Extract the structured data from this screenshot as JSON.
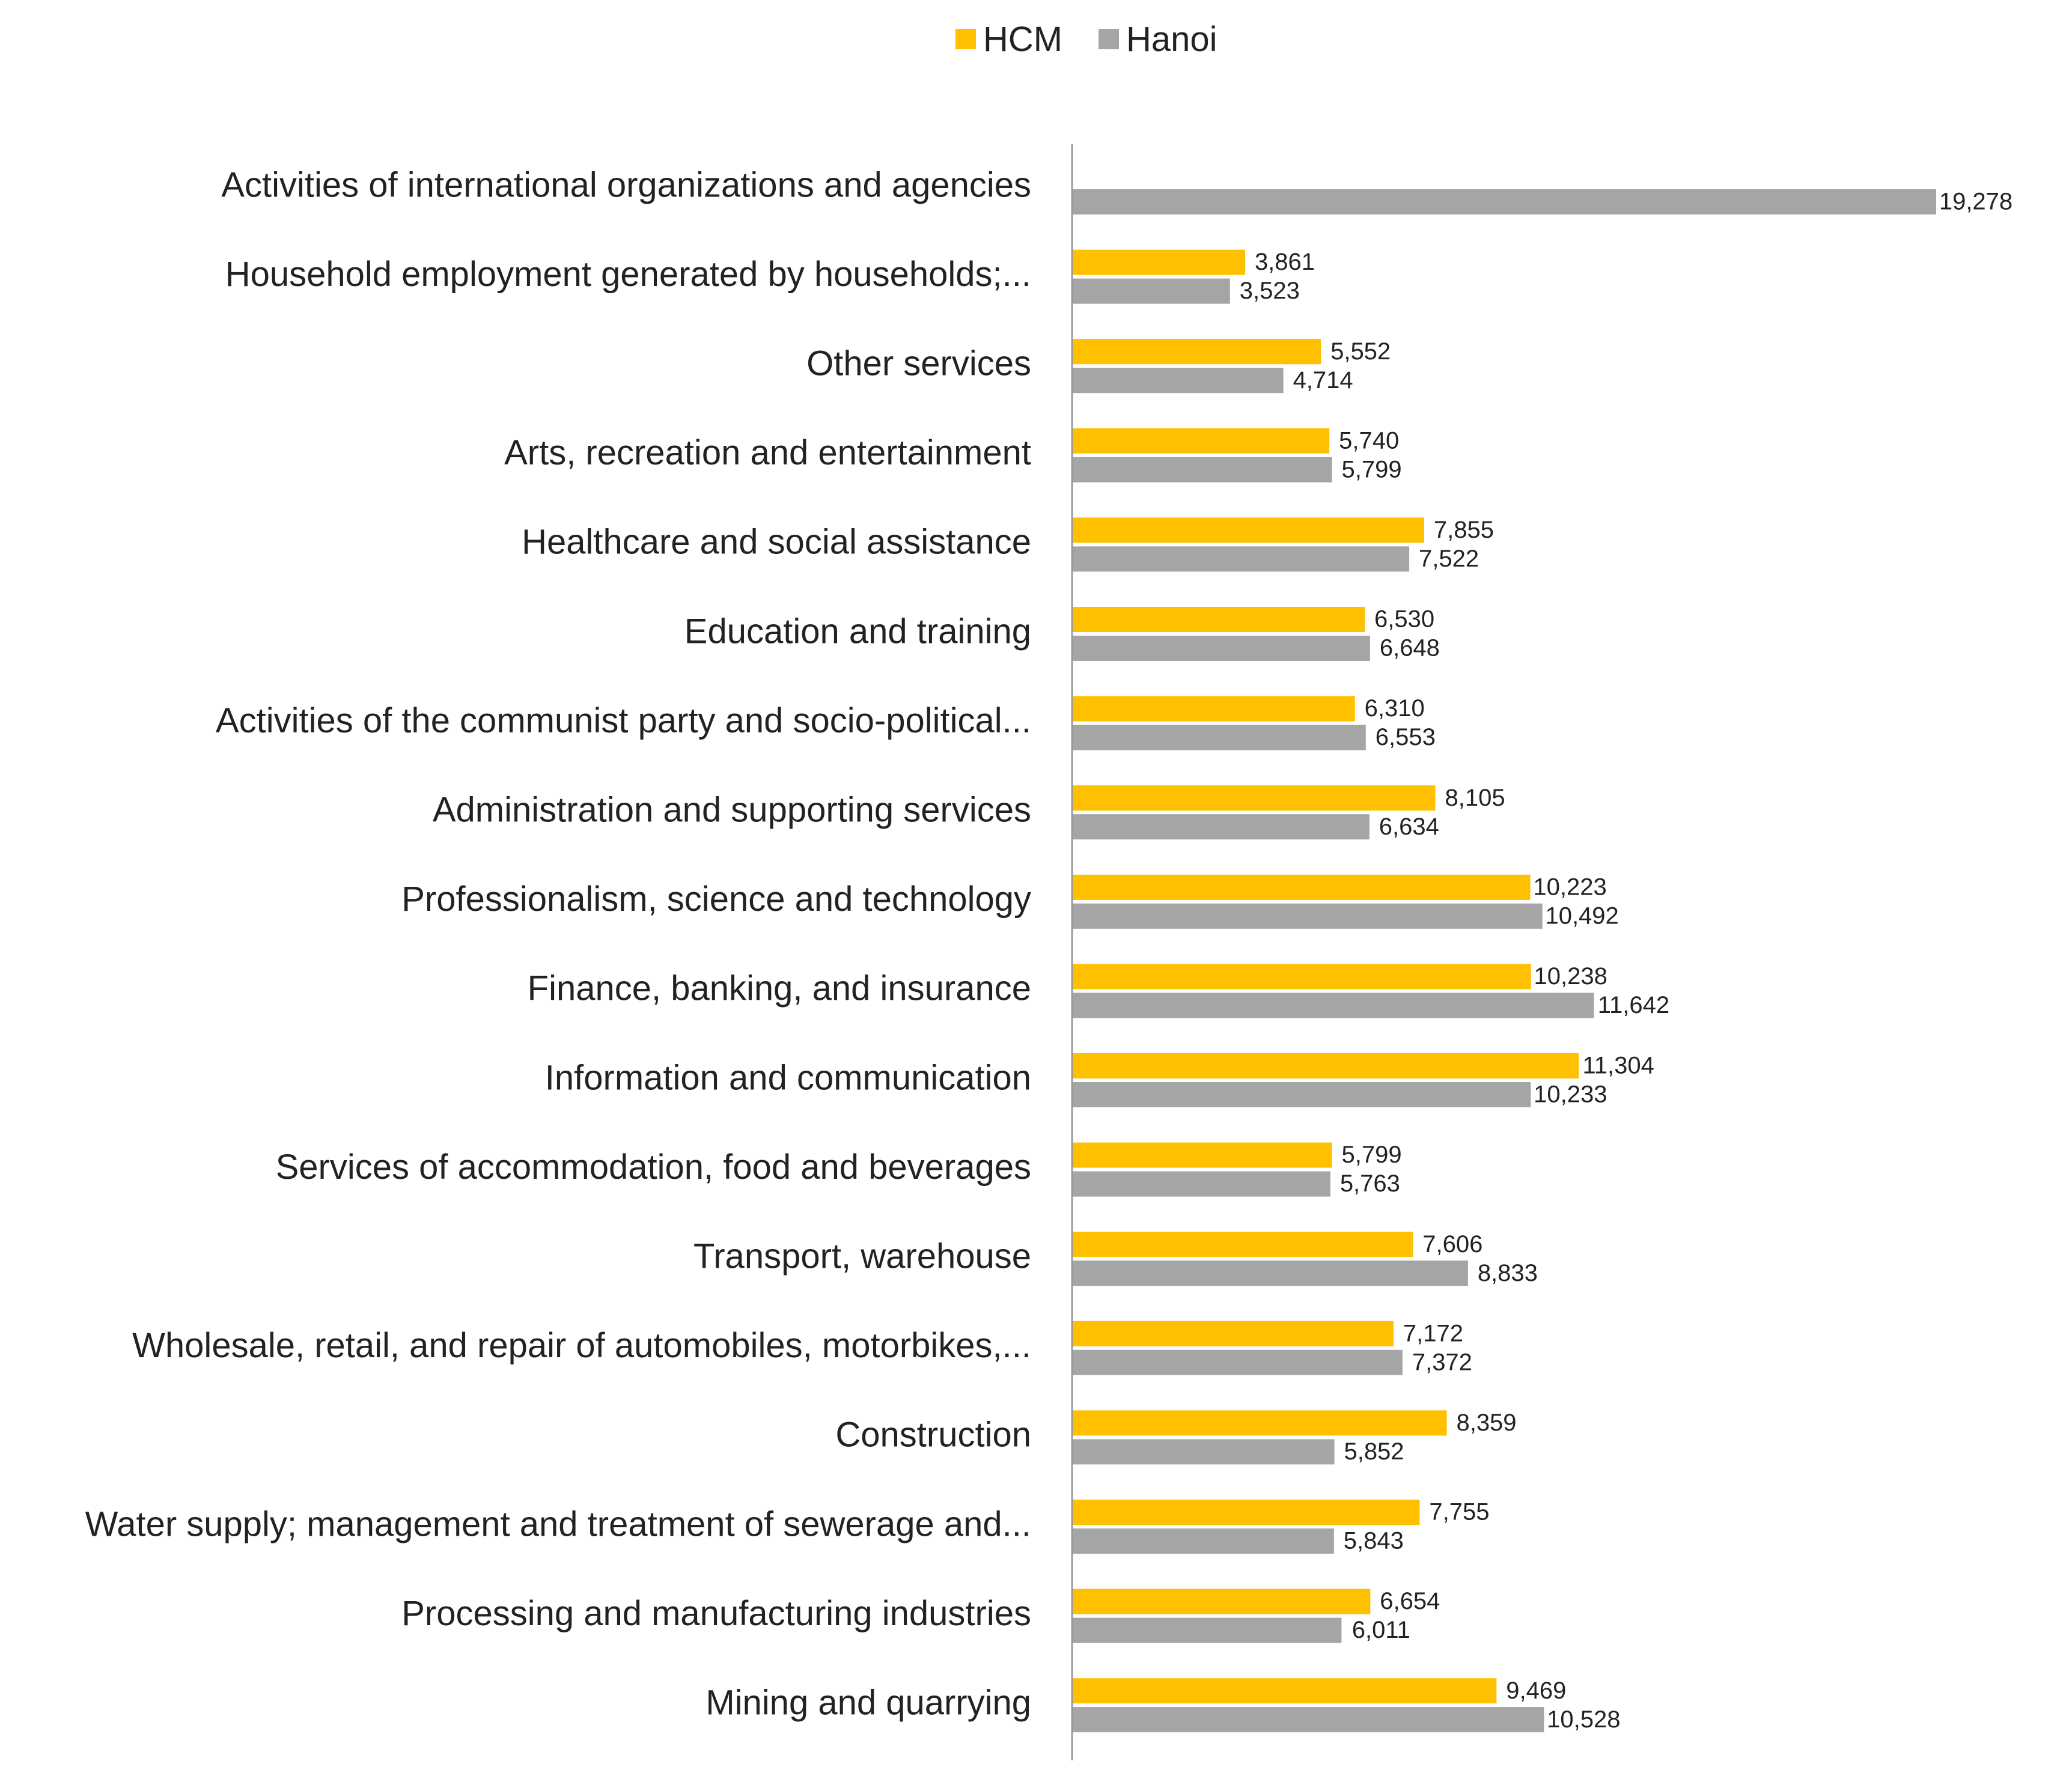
{
  "chart_data": {
    "type": "bar",
    "orientation": "horizontal",
    "title": "",
    "xlabel": "",
    "ylabel": "",
    "xlim": [
      0,
      19278
    ],
    "grid": false,
    "legend_position": "top-center",
    "categories": [
      "Activities of international organizations and agencies",
      "Household employment generated by households;...",
      "Other services",
      "Arts, recreation and entertainment",
      "Healthcare and social assistance",
      "Education and training",
      "Activities of the communist party and socio-political...",
      "Administration and supporting services",
      "Professionalism, science and technology",
      "Finance, banking, and insurance",
      "Information and communication",
      "Services of accommodation, food and beverages",
      "Transport, warehouse",
      "Wholesale, retail, and repair of automobiles, motorbikes,...",
      "Construction",
      "Water supply; management and treatment of sewerage and...",
      "Processing and manufacturing industries",
      "Mining and quarrying"
    ],
    "series": [
      {
        "name": "HCM",
        "color": "#FFC000",
        "values": [
          null,
          3861,
          5552,
          5740,
          7855,
          6530,
          6310,
          8105,
          10223,
          10238,
          11304,
          5799,
          7606,
          7172,
          8359,
          7755,
          6654,
          9469
        ],
        "labels": [
          "",
          "3,861",
          "5,552",
          "5,740",
          "7,855",
          "6,530",
          "6,310",
          "8,105",
          "10,223",
          "10,238",
          "11,304",
          "5,799",
          "7,606",
          "7,172",
          "8,359",
          "7,755",
          "6,654",
          "9,469"
        ]
      },
      {
        "name": "Hanoi",
        "color": "#A5A5A5",
        "values": [
          19278,
          3523,
          4714,
          5799,
          7522,
          6648,
          6553,
          6634,
          10492,
          11642,
          10233,
          5763,
          8833,
          7372,
          5852,
          5843,
          6011,
          10528
        ],
        "labels": [
          "19,278",
          "3,523",
          "4,714",
          "5,799",
          "7,522",
          "6,648",
          "6,553",
          "6,634",
          "10,492",
          "11,642",
          "10,233",
          "5,763",
          "8,833",
          "7,372",
          "5,852",
          "5,843",
          "6,011",
          "10,528"
        ]
      }
    ]
  }
}
